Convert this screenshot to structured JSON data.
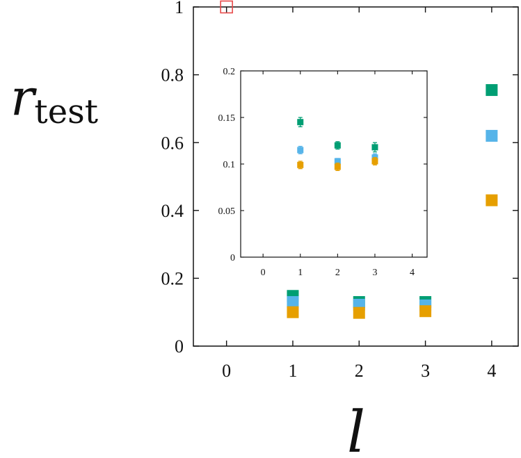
{
  "chart_data": [
    {
      "type": "scatter",
      "xlabel": "l",
      "ylabel": "r",
      "ylabel_subscript": "test",
      "xlim": [
        -0.5,
        4.4
      ],
      "ylim": [
        0,
        1
      ],
      "xticks": [
        "0",
        "1",
        "2",
        "3",
        "4"
      ],
      "yticks": [
        "0",
        "0.2",
        "0.4",
        "0.6",
        "0.8",
        "1"
      ],
      "grid": false,
      "legend": "none",
      "series": [
        {
          "color": "#009E73",
          "marker": "filled-square",
          "x": [
            1,
            2,
            3,
            4
          ],
          "y": [
            0.148,
            0.13,
            0.13,
            0.755
          ]
        },
        {
          "color": "#56B4E9",
          "marker": "filled-square",
          "x": [
            1,
            2,
            3,
            4
          ],
          "y": [
            0.13,
            0.122,
            0.12,
            0.62
          ]
        },
        {
          "color": "#E69F00",
          "marker": "filled-square",
          "x": [
            1,
            2,
            3,
            4
          ],
          "y": [
            0.1,
            0.098,
            0.103,
            0.43
          ]
        },
        {
          "color": "#E84A4A",
          "marker": "open-square",
          "x": [
            0
          ],
          "y": [
            1
          ]
        }
      ]
    },
    {
      "type": "scatter",
      "role": "inset",
      "xlim": [
        -0.6,
        4.4
      ],
      "ylim": [
        0,
        0.2
      ],
      "xticks": [
        "0",
        "1",
        "2",
        "3",
        "4"
      ],
      "yticks": [
        "0",
        "0.05",
        "0.1",
        "0.15",
        "0.2"
      ],
      "grid": false,
      "legend": "none",
      "series": [
        {
          "color": "#009E73",
          "marker": "filled-square-errorbar",
          "x": [
            1,
            2,
            3
          ],
          "y": [
            0.145,
            0.12,
            0.118
          ],
          "err": [
            0.005,
            0.004,
            0.005
          ]
        },
        {
          "color": "#56B4E9",
          "marker": "filled-square-errorbar",
          "x": [
            1,
            2,
            3
          ],
          "y": [
            0.115,
            0.103,
            0.107
          ],
          "err": [
            0.004,
            0.003,
            0.004
          ]
        },
        {
          "color": "#E69F00",
          "marker": "filled-square-errorbar",
          "x": [
            1,
            2,
            3
          ],
          "y": [
            0.099,
            0.097,
            0.103
          ],
          "err": [
            0.004,
            0.004,
            0.004
          ]
        }
      ]
    }
  ]
}
